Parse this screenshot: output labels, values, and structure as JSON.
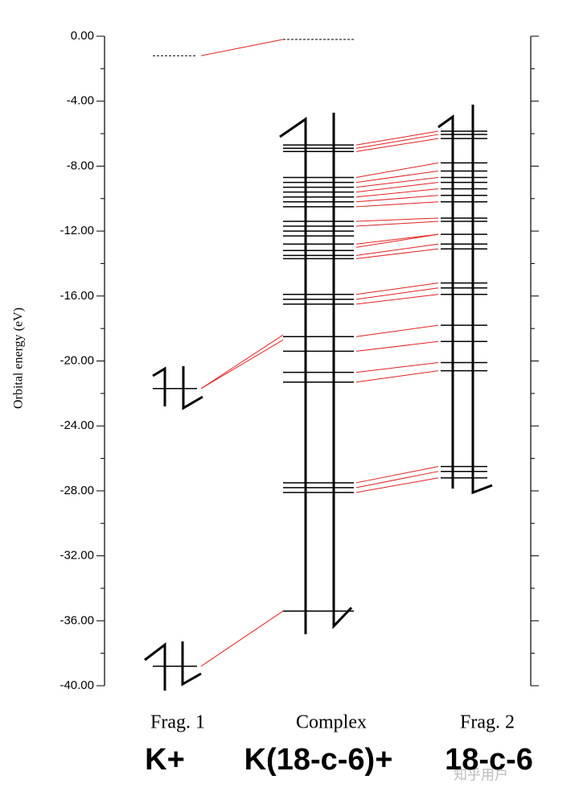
{
  "chart_data": {
    "type": "orbital-levels",
    "ylabel": "Orbital energy (eV)",
    "ylim": [
      -40,
      0
    ],
    "yticks": [
      {
        "value": 0,
        "label": "0.00"
      },
      {
        "value": -4,
        "label": "-4.00"
      },
      {
        "value": -8,
        "label": "-8.00"
      },
      {
        "value": -12,
        "label": "-12.00"
      },
      {
        "value": -16,
        "label": "-16.00"
      },
      {
        "value": -20,
        "label": "-20.00"
      },
      {
        "value": -24,
        "label": "-24.00"
      },
      {
        "value": -28,
        "label": "-28.00"
      },
      {
        "value": -32,
        "label": "-32.00"
      },
      {
        "value": -36,
        "label": "-36.00"
      },
      {
        "value": -40,
        "label": "-40.00"
      }
    ],
    "minor_yticks": [
      -2,
      -6,
      -10,
      -14,
      -18,
      -22,
      -26,
      -30,
      -34,
      -38
    ],
    "level_color": "#000000",
    "correlation_color": "#e02020",
    "columns": [
      {
        "name": "Frag. 1",
        "species": "K+",
        "virtual_levels": [
          -1.2
        ],
        "levels": [
          -21.7,
          -38.8
        ]
      },
      {
        "name": "Complex",
        "species": "K(18-c-6)+",
        "virtual_levels": [
          -0.2
        ],
        "levels": [
          -6.7,
          -6.9,
          -7.1,
          -8.7,
          -9.0,
          -9.3,
          -9.6,
          -9.9,
          -10.2,
          -10.5,
          -11.4,
          -11.7,
          -12.0,
          -12.3,
          -12.8,
          -13.2,
          -13.5,
          -13.7,
          -15.9,
          -16.2,
          -16.5,
          -18.5,
          -19.4,
          -20.7,
          -21.3,
          -27.5,
          -27.8,
          -28.1,
          -35.4
        ]
      },
      {
        "name": "Frag. 2",
        "species": "18-c-6",
        "virtual_levels": [],
        "levels": [
          -5.85,
          -6.05,
          -6.3,
          -7.8,
          -8.3,
          -8.7,
          -9.0,
          -9.4,
          -9.8,
          -10.2,
          -11.2,
          -11.4,
          -12.2,
          -12.8,
          -13.1,
          -15.2,
          -15.5,
          -15.9,
          -17.8,
          -18.8,
          -20.1,
          -20.6,
          -26.5,
          -26.8,
          -27.2
        ]
      }
    ],
    "correlations_frag1": [
      [
        -1.2,
        -0.2
      ],
      [
        -21.7,
        -18.4
      ],
      [
        -21.7,
        -18.7
      ],
      [
        -38.8,
        -35.4
      ]
    ],
    "correlations_frag2": [
      [
        -6.7,
        -5.85
      ],
      [
        -6.9,
        -6.05
      ],
      [
        -7.1,
        -6.3
      ],
      [
        -8.7,
        -7.8
      ],
      [
        -9.0,
        -8.3
      ],
      [
        -9.3,
        -8.7
      ],
      [
        -9.6,
        -9.0
      ],
      [
        -9.9,
        -9.4
      ],
      [
        -10.2,
        -9.8
      ],
      [
        -10.5,
        -10.2
      ],
      [
        -11.4,
        -11.2
      ],
      [
        -11.7,
        -11.4
      ],
      [
        -12.8,
        -12.2
      ],
      [
        -13.0,
        -12.2
      ],
      [
        -13.5,
        -12.8
      ],
      [
        -13.7,
        -13.1
      ],
      [
        -15.9,
        -15.2
      ],
      [
        -16.2,
        -15.5
      ],
      [
        -16.5,
        -15.9
      ],
      [
        -18.5,
        -17.8
      ],
      [
        -19.4,
        -18.8
      ],
      [
        -20.7,
        -20.1
      ],
      [
        -21.3,
        -20.6
      ],
      [
        -27.5,
        -26.5
      ],
      [
        -27.8,
        -26.8
      ],
      [
        -28.1,
        -27.2
      ]
    ],
    "watermark": "知乎用户"
  }
}
